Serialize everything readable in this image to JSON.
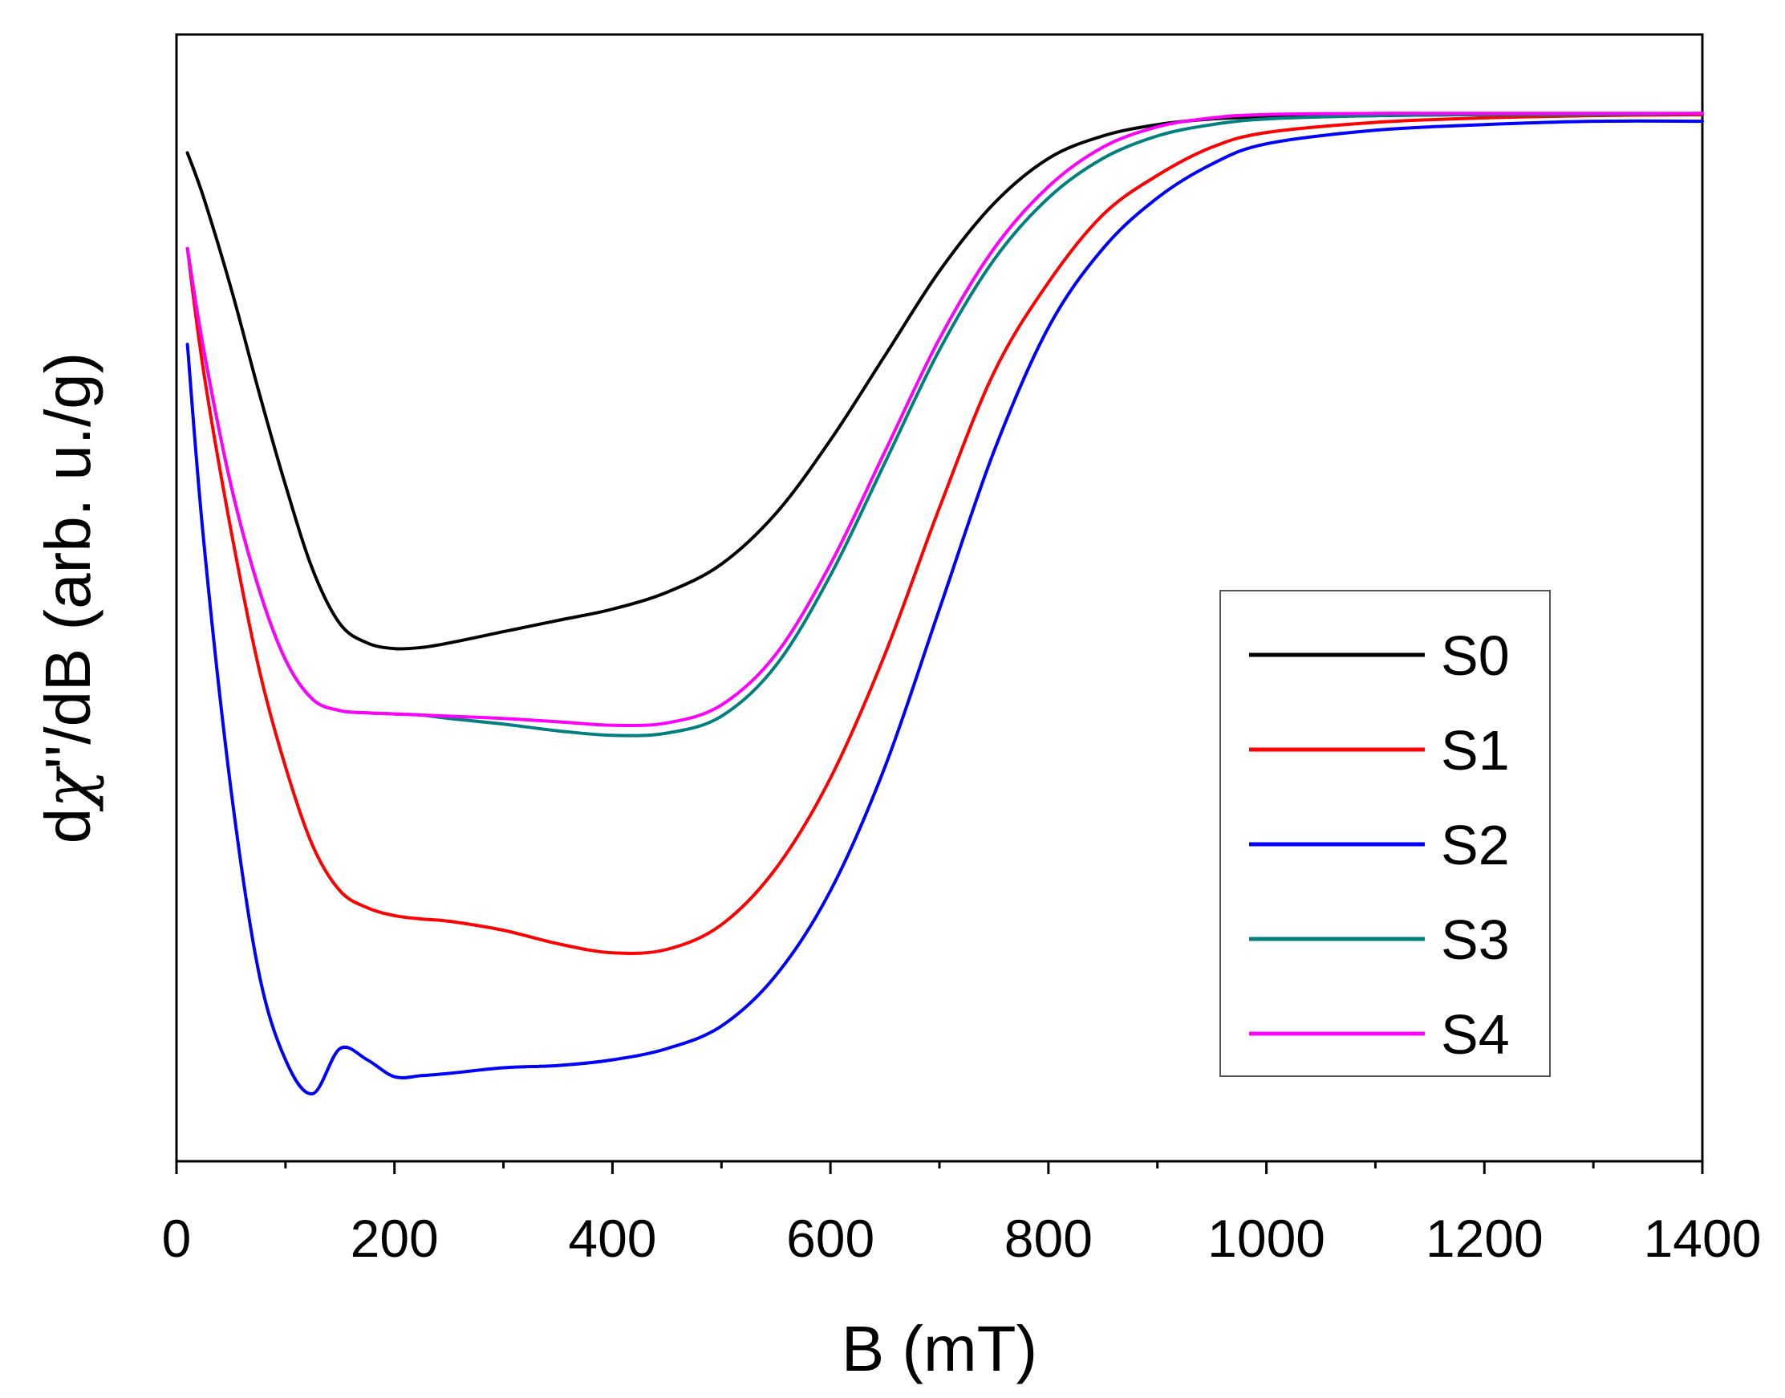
{
  "chart_data": {
    "type": "line",
    "title": "",
    "xlabel": "B (mT)",
    "ylabel_parts": [
      "d",
      "χ",
      "''/dB (arb. u./g)"
    ],
    "ylabel": "dχ''/dB (arb. u./g)",
    "xlim": [
      0,
      1400
    ],
    "ylim": [
      0,
      1
    ],
    "x_ticks": [
      "0",
      "200",
      "400",
      "600",
      "800",
      "1000",
      "1200",
      "1400"
    ],
    "x_tick_values": [
      0,
      200,
      400,
      600,
      800,
      1000,
      1200,
      1400
    ],
    "x_minor_tick_values": [
      100,
      300,
      500,
      700,
      900,
      1100,
      1300
    ],
    "y_ticks_shown": false,
    "grid": false,
    "legend_position": "center-right",
    "x": [
      10,
      25,
      50,
      75,
      100,
      125,
      150,
      175,
      200,
      225,
      250,
      300,
      350,
      400,
      450,
      500,
      550,
      600,
      650,
      700,
      750,
      800,
      850,
      900,
      950,
      1000,
      1100,
      1200,
      1300,
      1400
    ],
    "series": [
      {
        "name": "S0",
        "color": "#000000",
        "values": [
          0.895,
          0.855,
          0.775,
          0.685,
          0.6,
          0.525,
          0.477,
          0.46,
          0.455,
          0.456,
          0.46,
          0.47,
          0.48,
          0.49,
          0.505,
          0.53,
          0.575,
          0.64,
          0.715,
          0.79,
          0.85,
          0.89,
          0.91,
          0.92,
          0.925,
          0.927,
          0.928,
          0.929,
          0.929,
          0.929
        ]
      },
      {
        "name": "S1",
        "color": "#ff0000",
        "values": [
          0.81,
          0.7,
          0.56,
          0.44,
          0.35,
          0.28,
          0.24,
          0.225,
          0.218,
          0.215,
          0.213,
          0.205,
          0.193,
          0.185,
          0.188,
          0.21,
          0.26,
          0.34,
          0.45,
          0.58,
          0.7,
          0.78,
          0.84,
          0.875,
          0.9,
          0.913,
          0.922,
          0.926,
          0.928,
          0.929
        ]
      },
      {
        "name": "S2",
        "color": "#0000ff",
        "values": [
          0.725,
          0.55,
          0.33,
          0.17,
          0.09,
          0.06,
          0.1,
          0.09,
          0.075,
          0.076,
          0.078,
          0.083,
          0.085,
          0.09,
          0.1,
          0.12,
          0.165,
          0.24,
          0.35,
          0.49,
          0.63,
          0.74,
          0.81,
          0.855,
          0.885,
          0.903,
          0.915,
          0.92,
          0.923,
          0.923
        ]
      },
      {
        "name": "S3",
        "color": "#007f7f",
        "values": [
          0.81,
          0.72,
          0.6,
          0.51,
          0.445,
          0.41,
          0.4,
          0.398,
          0.397,
          0.396,
          0.393,
          0.388,
          0.382,
          0.378,
          0.38,
          0.395,
          0.44,
          0.52,
          0.62,
          0.72,
          0.8,
          0.855,
          0.89,
          0.91,
          0.92,
          0.925,
          0.928,
          0.929,
          0.929,
          0.93
        ]
      },
      {
        "name": "S4",
        "color": "#ff00ff",
        "values": [
          0.81,
          0.72,
          0.6,
          0.51,
          0.445,
          0.41,
          0.4,
          0.398,
          0.397,
          0.396,
          0.395,
          0.393,
          0.39,
          0.387,
          0.389,
          0.405,
          0.45,
          0.53,
          0.63,
          0.73,
          0.81,
          0.865,
          0.9,
          0.918,
          0.926,
          0.929,
          0.93,
          0.93,
          0.93,
          0.93
        ]
      }
    ]
  }
}
